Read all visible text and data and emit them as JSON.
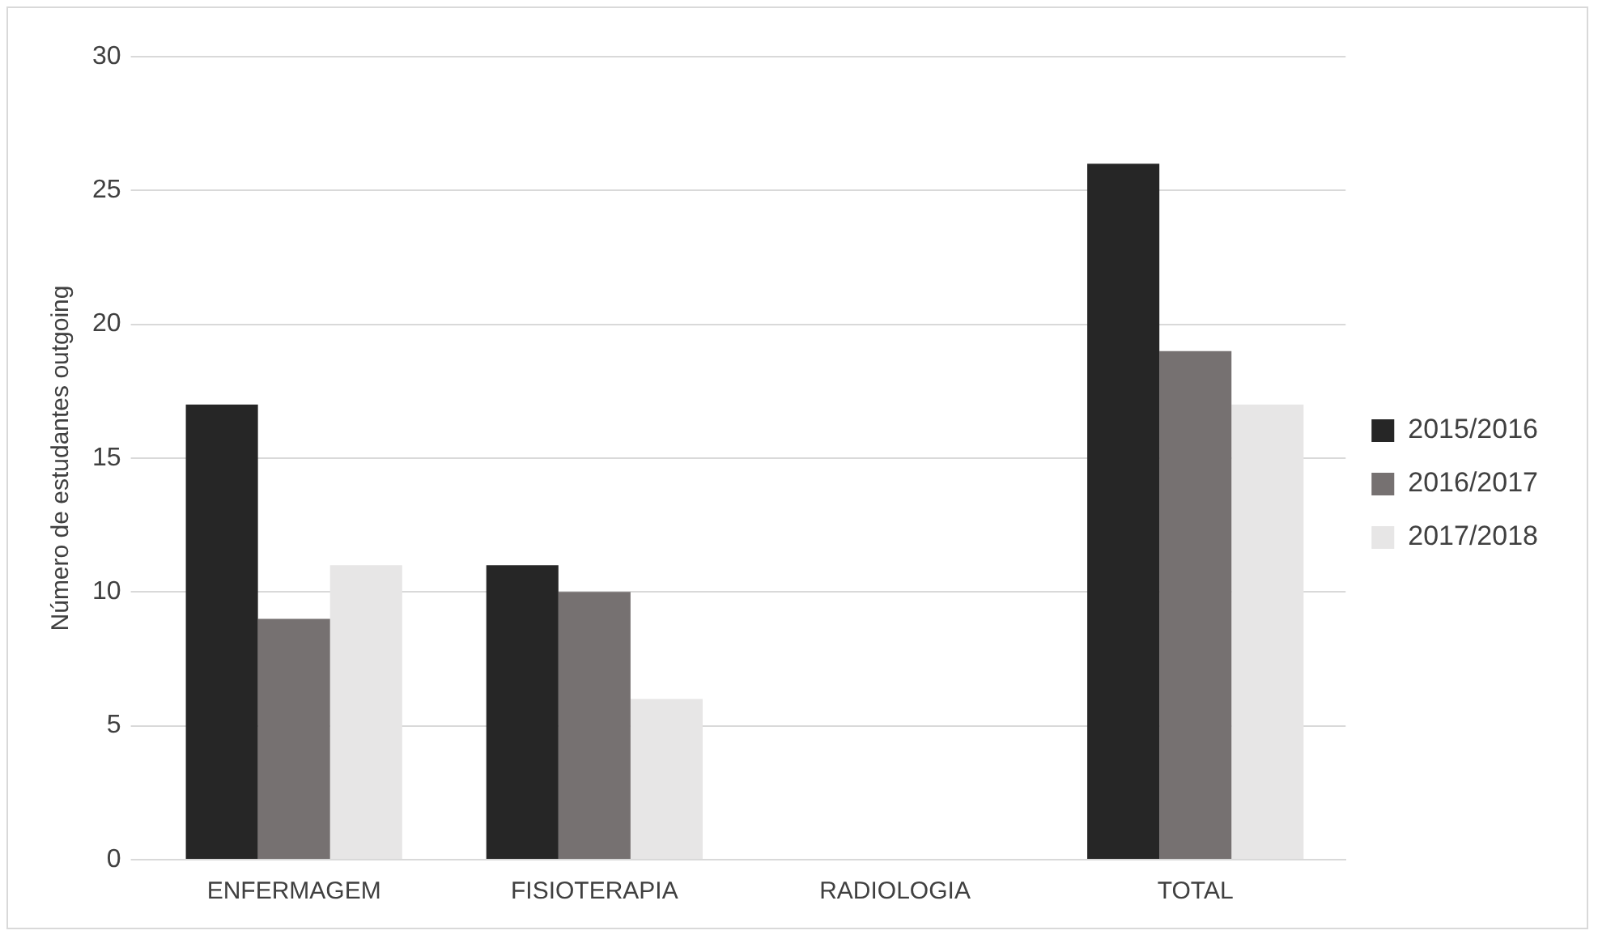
{
  "chart_data": {
    "type": "bar",
    "ylabel": "Número de estudantes outgoing",
    "categories": [
      "ENFERMAGEM",
      "FISIOTERAPIA",
      "RADIOLOGIA",
      "TOTAL"
    ],
    "series": [
      {
        "name": "2015/2016",
        "color": "#262626",
        "values": [
          17,
          11,
          0,
          26
        ]
      },
      {
        "name": "2016/2017",
        "color": "#767171",
        "values": [
          9,
          10,
          0,
          19
        ]
      },
      {
        "name": "2017/2018",
        "color": "#e7e6e6",
        "values": [
          11,
          6,
          0,
          17
        ]
      }
    ],
    "ylim": [
      0,
      30
    ],
    "yticks": [
      0,
      5,
      10,
      15,
      20,
      25,
      30
    ],
    "grid": "y",
    "legend": "right"
  }
}
